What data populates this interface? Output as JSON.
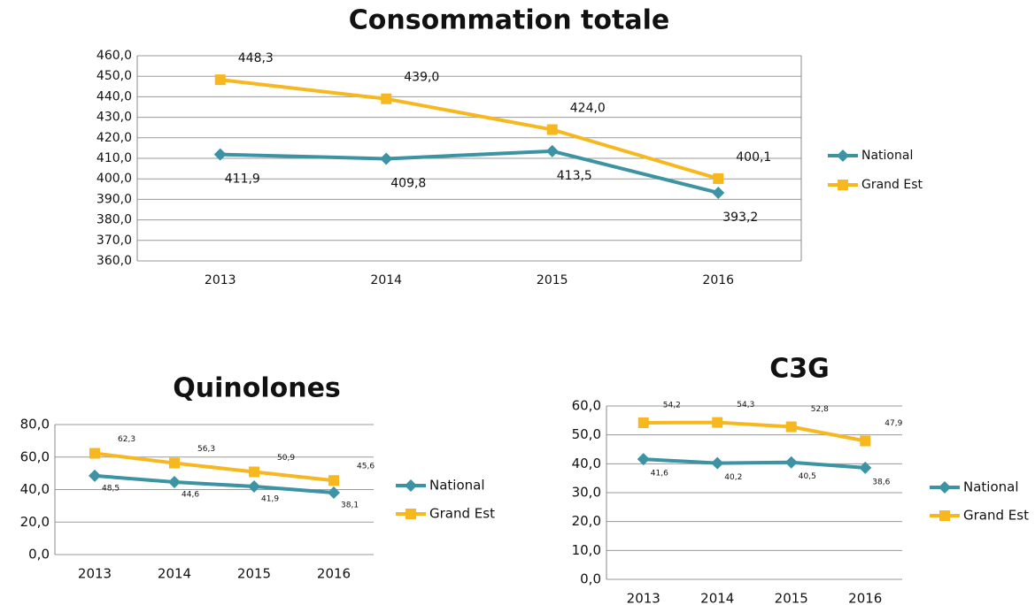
{
  "chart_data": [
    {
      "type": "line",
      "title": "Consommation totale",
      "categories": [
        "2013",
        "2014",
        "2015",
        "2016"
      ],
      "series": [
        {
          "name": "National",
          "color": "#3b93a3",
          "marker": "diamond",
          "values": [
            411.9,
            409.8,
            413.5,
            393.2
          ],
          "value_labels": [
            "411,9",
            "409,8",
            "413,5",
            "393,2"
          ]
        },
        {
          "name": "Grand Est",
          "color": "#f6b81e",
          "marker": "square",
          "values": [
            448.3,
            439.0,
            424.0,
            400.1
          ],
          "value_labels": [
            "448,3",
            "439,0",
            "424,0",
            "400,1"
          ]
        }
      ],
      "ylim": [
        360,
        460
      ],
      "yticks": [
        {
          "value": 360,
          "label": "360,0"
        },
        {
          "value": 370,
          "label": "370,0"
        },
        {
          "value": 380,
          "label": "380,0"
        },
        {
          "value": 390,
          "label": "390,0"
        },
        {
          "value": 400,
          "label": "400,0"
        },
        {
          "value": 410,
          "label": "410,0"
        },
        {
          "value": 420,
          "label": "420,0"
        },
        {
          "value": 430,
          "label": "430,0"
        },
        {
          "value": 440,
          "label": "440,0"
        },
        {
          "value": 450,
          "label": "450,0"
        },
        {
          "value": 460,
          "label": "460,0"
        }
      ],
      "grid": true,
      "legend": "right"
    },
    {
      "type": "line",
      "title": "Quinolones",
      "categories": [
        "2013",
        "2014",
        "2015",
        "2016"
      ],
      "series": [
        {
          "name": "National",
          "color": "#3b93a3",
          "marker": "diamond",
          "values": [
            48.5,
            44.6,
            41.9,
            38.1
          ],
          "value_labels": [
            "48,5",
            "44,6",
            "41,9",
            "38,1"
          ]
        },
        {
          "name": "Grand Est",
          "color": "#f6b81e",
          "marker": "square",
          "values": [
            62.3,
            56.3,
            50.9,
            45.6
          ],
          "value_labels": [
            "62,3",
            "56,3",
            "50,9",
            "45,6"
          ]
        }
      ],
      "ylim": [
        0,
        80
      ],
      "yticks": [
        {
          "value": 0,
          "label": "0,0"
        },
        {
          "value": 20,
          "label": "20,0"
        },
        {
          "value": 40,
          "label": "40,0"
        },
        {
          "value": 60,
          "label": "60,0"
        },
        {
          "value": 80,
          "label": "80,0"
        }
      ],
      "grid": true,
      "legend": "right"
    },
    {
      "type": "line",
      "title": "C3G",
      "categories": [
        "2013",
        "2014",
        "2015",
        "2016"
      ],
      "series": [
        {
          "name": "National",
          "color": "#3b93a3",
          "marker": "diamond",
          "values": [
            41.6,
            40.2,
            40.5,
            38.6
          ],
          "value_labels": [
            "41,6",
            "40,2",
            "40,5",
            "38,6"
          ]
        },
        {
          "name": "Grand Est",
          "color": "#f6b81e",
          "marker": "square",
          "values": [
            54.2,
            54.3,
            52.8,
            47.9
          ],
          "value_labels": [
            "54,2",
            "54,3",
            "52,8",
            "47,9"
          ]
        }
      ],
      "ylim": [
        0,
        60
      ],
      "yticks": [
        {
          "value": 0,
          "label": "0,0"
        },
        {
          "value": 10,
          "label": "10,0"
        },
        {
          "value": 20,
          "label": "20,0"
        },
        {
          "value": 30,
          "label": "30,0"
        },
        {
          "value": 40,
          "label": "40,0"
        },
        {
          "value": 50,
          "label": "50,0"
        },
        {
          "value": 60,
          "label": "60,0"
        }
      ],
      "grid": true,
      "legend": "right"
    }
  ]
}
